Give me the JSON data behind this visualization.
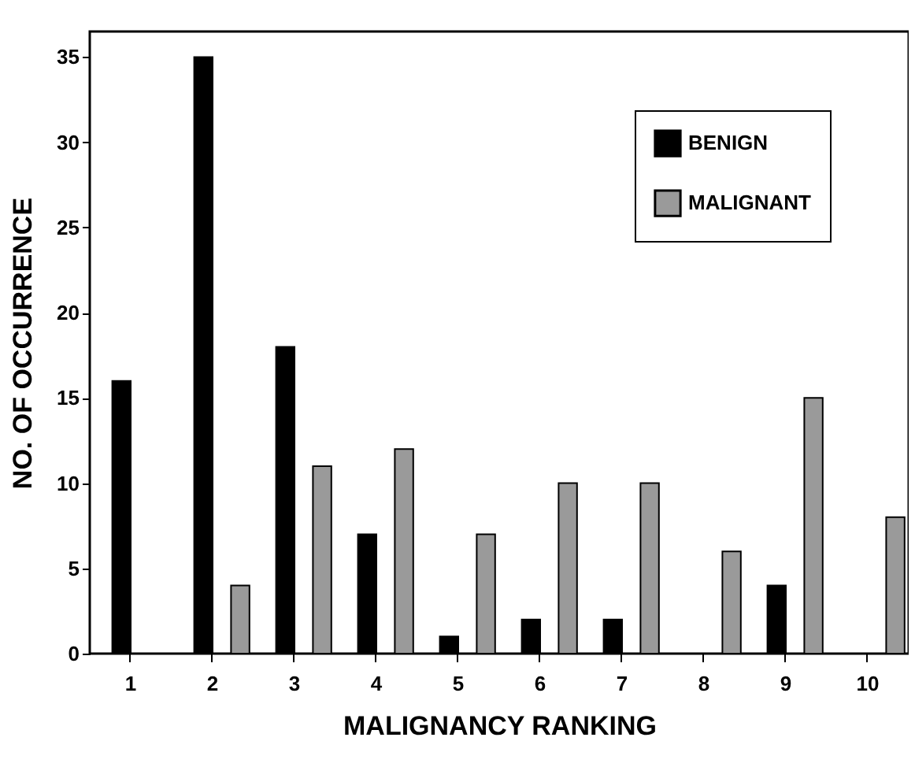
{
  "chart_data": {
    "type": "bar",
    "xlabel": "MALIGNANCY RANKING",
    "ylabel": "NO. OF OCCURRENCE",
    "categories": [
      "1",
      "2",
      "3",
      "4",
      "5",
      "6",
      "7",
      "8",
      "9",
      "10"
    ],
    "series": [
      {
        "name": "BENIGN",
        "color": "#000000",
        "values": [
          16,
          35,
          18,
          7,
          1,
          2,
          2,
          null,
          4,
          null
        ]
      },
      {
        "name": "MALIGNANT",
        "color": "#9a9a9a",
        "values": [
          null,
          4,
          11,
          12,
          7,
          10,
          10,
          6,
          15,
          8
        ]
      }
    ],
    "ylim": [
      0,
      36.5
    ],
    "yticks": [
      0,
      5,
      10,
      15,
      20,
      25,
      30,
      35
    ],
    "grid": false,
    "legend": "top right"
  }
}
